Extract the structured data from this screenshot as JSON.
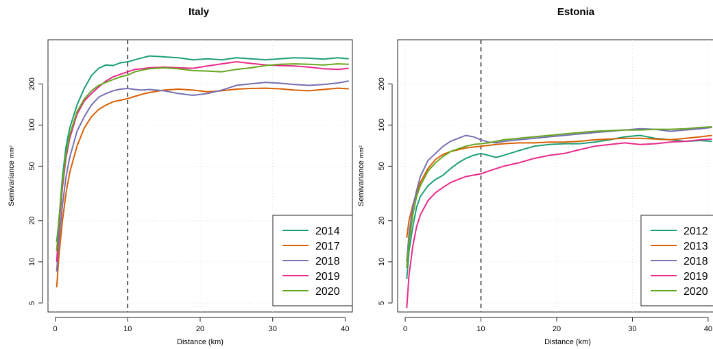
{
  "chart_data": [
    {
      "type": "line",
      "title": "Italy",
      "xlabel": "Distance (km)",
      "ylabel": "Semivariance",
      "ylabel_unit": "mm²",
      "y_scale": "log",
      "xlim": [
        -1,
        41
      ],
      "ylim": [
        4.3,
        420
      ],
      "x_ticks": [
        0,
        10,
        20,
        30,
        40
      ],
      "y_ticks": [
        5,
        10,
        20,
        50,
        100,
        200
      ],
      "grid": true,
      "vline_x": 10,
      "legend_position": "bottom-right",
      "series": [
        {
          "name": "2014",
          "color": "#1b9e77",
          "x": [
            0.2,
            0.5,
            1,
            1.5,
            2,
            3,
            4,
            5,
            6,
            7,
            8,
            9,
            10,
            11,
            12,
            13,
            15,
            17,
            19,
            21,
            23,
            25,
            27,
            29,
            31,
            33,
            35,
            37,
            39,
            40.5
          ],
          "y": [
            14,
            20,
            42,
            70,
            95,
            140,
            185,
            230,
            260,
            275,
            272,
            285,
            290,
            300,
            310,
            320,
            315,
            310,
            300,
            305,
            300,
            310,
            305,
            300,
            305,
            310,
            308,
            303,
            310,
            305
          ]
        },
        {
          "name": "2017",
          "color": "#d95f02",
          "x": [
            0.2,
            0.5,
            1,
            1.5,
            2,
            3,
            4,
            5,
            6,
            7,
            8,
            9,
            10,
            11,
            12,
            13,
            15,
            17,
            19,
            21,
            23,
            25,
            27,
            29,
            31,
            33,
            35,
            37,
            39,
            40.5
          ],
          "y": [
            6.5,
            11,
            20,
            32,
            45,
            70,
            95,
            115,
            130,
            140,
            148,
            152,
            156,
            162,
            168,
            173,
            180,
            183,
            180,
            175,
            178,
            183,
            185,
            186,
            184,
            180,
            178,
            182,
            186,
            184
          ]
        },
        {
          "name": "2018",
          "color": "#7570b3",
          "x": [
            0.2,
            0.5,
            1,
            1.5,
            2,
            3,
            4,
            5,
            6,
            7,
            8,
            9,
            10,
            11,
            12,
            13,
            15,
            17,
            19,
            21,
            23,
            25,
            27,
            29,
            31,
            33,
            35,
            37,
            39,
            40.5
          ],
          "y": [
            8.5,
            14,
            26,
            42,
            58,
            90,
            115,
            140,
            160,
            170,
            178,
            183,
            185,
            182,
            180,
            182,
            178,
            170,
            165,
            170,
            180,
            195,
            200,
            205,
            202,
            198,
            195,
            198,
            203,
            210
          ]
        },
        {
          "name": "2019",
          "color": "#e7298a",
          "x": [
            0.2,
            0.5,
            1,
            1.5,
            2,
            3,
            4,
            5,
            6,
            7,
            8,
            9,
            10,
            11,
            12,
            13,
            15,
            17,
            19,
            21,
            23,
            25,
            27,
            29,
            31,
            33,
            35,
            37,
            39,
            40.5
          ],
          "y": [
            10,
            18,
            35,
            58,
            80,
            120,
            150,
            170,
            190,
            210,
            225,
            235,
            245,
            255,
            258,
            262,
            265,
            262,
            260,
            270,
            280,
            290,
            282,
            275,
            272,
            270,
            265,
            258,
            255,
            260
          ]
        },
        {
          "name": "2020",
          "color": "#66a61e",
          "x": [
            0.2,
            0.5,
            1,
            1.5,
            2,
            3,
            4,
            5,
            6,
            7,
            8,
            9,
            10,
            11,
            12,
            13,
            15,
            17,
            19,
            21,
            23,
            25,
            27,
            29,
            31,
            33,
            35,
            37,
            39,
            40.5
          ],
          "y": [
            12,
            20,
            38,
            62,
            85,
            125,
            155,
            178,
            195,
            205,
            215,
            225,
            232,
            245,
            252,
            258,
            262,
            258,
            250,
            248,
            245,
            255,
            262,
            272,
            278,
            280,
            278,
            275,
            280,
            278
          ]
        }
      ]
    },
    {
      "type": "line",
      "title": "Estonia",
      "xlabel": "Distance (km)",
      "ylabel": "Semivariance",
      "ylabel_unit": "mm²",
      "y_scale": "log",
      "xlim": [
        -1,
        41
      ],
      "ylim": [
        4.3,
        420
      ],
      "x_ticks": [
        0,
        10,
        20,
        30,
        40
      ],
      "y_ticks": [
        5,
        10,
        20,
        50,
        100,
        200
      ],
      "grid": true,
      "vline_x": 10,
      "legend_position": "bottom-right",
      "series": [
        {
          "name": "2012",
          "color": "#1b9e77",
          "x": [
            0.2,
            0.5,
            1,
            1.5,
            2,
            3,
            4,
            5,
            6,
            7,
            8,
            9,
            10,
            11,
            12,
            13,
            15,
            17,
            19,
            21,
            23,
            25,
            27,
            29,
            31,
            33,
            35,
            37,
            39,
            40.5
          ],
          "y": [
            7.5,
            12,
            18,
            25,
            30,
            36,
            40,
            43,
            48,
            53,
            57,
            60,
            62,
            60,
            58,
            60,
            65,
            70,
            72,
            73,
            73,
            75,
            78,
            82,
            84,
            80,
            78,
            76,
            77,
            76
          ]
        },
        {
          "name": "2013",
          "color": "#d95f02",
          "x": [
            0.2,
            0.5,
            1,
            1.5,
            2,
            3,
            4,
            5,
            6,
            7,
            8,
            9,
            10,
            11,
            12,
            13,
            15,
            17,
            19,
            21,
            23,
            25,
            27,
            29,
            31,
            33,
            35,
            37,
            39,
            40.5
          ],
          "y": [
            15,
            20,
            26,
            32,
            38,
            48,
            56,
            61,
            64,
            66,
            68,
            69,
            70,
            71,
            72,
            73,
            74,
            74,
            75,
            75,
            76,
            78,
            79,
            80,
            80,
            79,
            78,
            80,
            82,
            84
          ]
        },
        {
          "name": "2018",
          "color": "#7570b3",
          "x": [
            0.2,
            0.5,
            1,
            1.5,
            2,
            3,
            4,
            5,
            6,
            7,
            8,
            9,
            10,
            11,
            12,
            13,
            15,
            17,
            19,
            21,
            23,
            25,
            27,
            29,
            31,
            33,
            35,
            37,
            39,
            40.5
          ],
          "y": [
            10,
            16,
            25,
            33,
            42,
            55,
            62,
            70,
            76,
            80,
            84,
            82,
            78,
            75,
            74,
            76,
            78,
            80,
            82,
            84,
            86,
            88,
            90,
            92,
            94,
            93,
            90,
            92,
            94,
            96
          ]
        },
        {
          "name": "2019",
          "color": "#e7298a",
          "x": [
            0.2,
            0.5,
            1,
            1.5,
            2,
            3,
            4,
            5,
            6,
            7,
            8,
            9,
            10,
            11,
            12,
            13,
            15,
            17,
            19,
            21,
            23,
            25,
            27,
            29,
            31,
            33,
            35,
            37,
            39,
            40.5
          ],
          "y": [
            4.6,
            8,
            13,
            18,
            22,
            28,
            32,
            35,
            38,
            40,
            42,
            43,
            44,
            46,
            48,
            50,
            53,
            57,
            60,
            62,
            66,
            70,
            72,
            74,
            72,
            73,
            75,
            76,
            78,
            79
          ]
        },
        {
          "name": "2020",
          "color": "#66a61e",
          "x": [
            0.2,
            0.5,
            1,
            1.5,
            2,
            3,
            4,
            5,
            6,
            7,
            8,
            9,
            10,
            11,
            12,
            13,
            15,
            17,
            19,
            21,
            23,
            25,
            27,
            29,
            31,
            33,
            35,
            37,
            39,
            40.5
          ],
          "y": [
            9,
            14,
            22,
            30,
            36,
            46,
            53,
            59,
            64,
            67,
            70,
            72,
            73,
            74,
            76,
            78,
            80,
            82,
            84,
            86,
            88,
            90,
            91,
            92,
            92,
            93,
            93,
            94,
            96,
            97
          ]
        }
      ]
    }
  ]
}
